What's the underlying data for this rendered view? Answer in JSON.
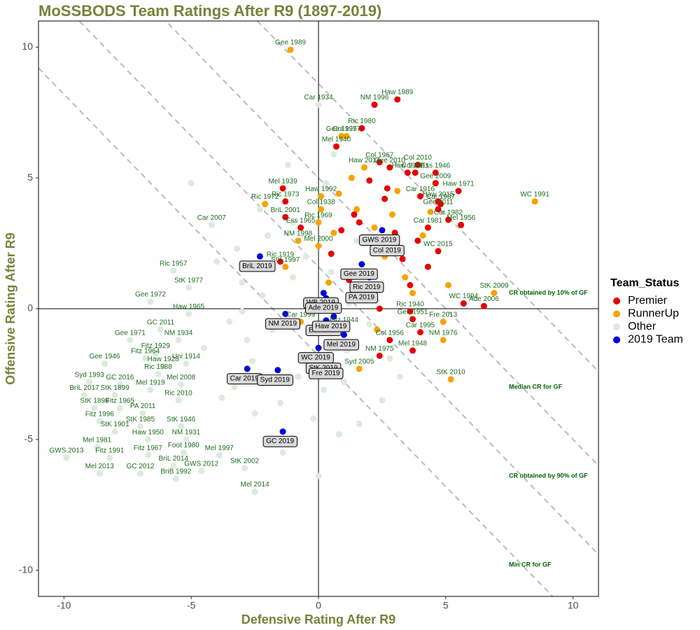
{
  "chart_data": {
    "type": "scatter",
    "title": "MoSSBODS Team Ratings After R9 (1897-2019)",
    "x_label": "Defensive Rating After R9",
    "y_label": "Offensive Rating After R9",
    "legend_title": "Team_Status",
    "xlim": [
      -11,
      11
    ],
    "ylim": [
      -11,
      11
    ],
    "xticks": [
      -10,
      -5,
      0,
      5,
      10
    ],
    "yticks": [
      -10,
      -5,
      0,
      5,
      10
    ],
    "zero_lines": true,
    "reference_lines": [
      {
        "value": 8.6,
        "label": "CR obtained by 10% of GF"
      },
      {
        "value": 5,
        "label": "Median CR for GF"
      },
      {
        "value": 1.6,
        "label": "CR obtained by 90% of GF"
      },
      {
        "value": -1.8,
        "label": "Min CR for GF"
      }
    ],
    "series": [
      {
        "name": "Premier",
        "color": "#e60000",
        "x": [
          3.1,
          2.2,
          1.7,
          0.7,
          2.4,
          2.8,
          3.5,
          3.9,
          3.8,
          4.6,
          4.6,
          5.5,
          4.8,
          5.1,
          5.6,
          4.7,
          4.3,
          4.7,
          4.7,
          4.0,
          -1.4,
          -1.3,
          -1.3,
          -0.7,
          -1.5,
          5.7,
          6.5,
          4.0,
          3.7,
          2.8,
          2.4,
          3.7,
          3.6,
          1.0,
          2.0,
          2.6,
          1.4,
          3.0,
          2.2,
          1.9,
          3.3,
          0.9,
          2.7,
          1.2,
          3.6,
          2.4,
          0.5,
          1.6,
          4.3,
          3.9
        ],
        "y": [
          8.0,
          7.8,
          6.9,
          6.2,
          5.6,
          5.4,
          5.2,
          5.5,
          5.2,
          5.2,
          4.8,
          4.5,
          4.0,
          3.4,
          3.2,
          2.2,
          3.1,
          3.8,
          4.1,
          4.3,
          4.6,
          4.1,
          3.5,
          3.1,
          1.8,
          0.2,
          0.1,
          -0.9,
          -1.6,
          -1.2,
          -1.8,
          -0.4,
          -0.1,
          -0.7,
          4.9,
          4.2,
          3.6,
          2.9,
          2.4,
          1.3,
          1.9,
          3.0,
          4.6,
          1.1,
          0.9,
          0.0,
          2.1,
          3.3,
          1.6,
          2.6
        ],
        "labels": [
          "Haw 1989",
          "NM 1996",
          "Ric 1980",
          "Mel 1940",
          "Col 1967",
          "Gee 2010",
          "Haw 1977",
          "Col 2010",
          "Col 2011",
          "Ess 1946",
          "Gee 2009",
          "Haw 1971",
          "Car 1987",
          "Car 1982",
          "Mel 1956",
          "WC 2015",
          "Car 1981",
          "Gee 2011",
          "Haw 2015",
          "Car 1916",
          "Mel 1939",
          "Ric 1973",
          "BriL 2001",
          "Ess 1965",
          "Ric 1919",
          "WC 1994",
          "Ade 2006",
          "Car 1995",
          "Mel 1948",
          "Col 1956",
          "NM 1975",
          "Gee 1951",
          "Ric 1940",
          "Fitz 1944",
          null,
          null,
          null,
          null,
          null,
          null,
          null,
          null,
          null,
          null,
          null,
          null,
          null,
          null,
          null,
          null
        ]
      },
      {
        "name": "RunnerUp",
        "color": "#f5a300",
        "x": [
          -1.1,
          0.9,
          1.1,
          8.5,
          6.9,
          5.2,
          4.9,
          4.9,
          0.1,
          0.1,
          -0.8,
          0.0,
          1.8,
          0.0,
          -2.1,
          -1.3,
          -0.7,
          1.6,
          0.8,
          1.5,
          2.2,
          3.1,
          2.6,
          1.9,
          3.4,
          0.4,
          4.1,
          2.9,
          1.3,
          3.7,
          0.6,
          2.3,
          5.1,
          4.4
        ],
        "y": [
          9.9,
          6.6,
          6.6,
          4.1,
          0.6,
          -2.7,
          -0.5,
          -1.2,
          4.3,
          3.8,
          2.6,
          3.3,
          5.4,
          2.4,
          4.0,
          1.6,
          -0.5,
          -2.3,
          4.4,
          3.8,
          3.1,
          4.5,
          2.0,
          0.8,
          1.2,
          1.0,
          2.8,
          3.6,
          5.0,
          0.6,
          2.9,
          -0.8,
          0.9,
          3.7
        ],
        "labels": [
          "Gee 1989",
          "Gee 1995",
          "Col 1977",
          "WC 1991",
          "StK 2009",
          "StK 2010",
          "Fre 2013",
          "NM 1976",
          "Haw 1992",
          "Col 1938",
          "NM 1998",
          "Ric 1969",
          "Haw 2014",
          "Mel 2000",
          "Ric 1972",
          "StK 1997",
          "Car 1999",
          "Syd 2005",
          null,
          null,
          null,
          null,
          null,
          null,
          null,
          null,
          null,
          null,
          null,
          null,
          null,
          null,
          null,
          null
        ]
      },
      {
        "name": "Other",
        "color": "#dcebdc",
        "x": [
          -4.2,
          -5.7,
          -5.1,
          -6.6,
          -5.1,
          -6.2,
          -7.4,
          -5.5,
          -6.4,
          -6.8,
          -6.1,
          -5.2,
          -8.4,
          -6.3,
          -9.0,
          -7.8,
          -6.6,
          -5.4,
          -9.2,
          -8.0,
          -8.8,
          -5.5,
          -7.8,
          -8.6,
          -6.9,
          -8.0,
          -7.0,
          -5.4,
          -6.7,
          -5.2,
          -8.7,
          -9.9,
          -8.2,
          -6.7,
          -5.3,
          -3.9,
          -8.6,
          -7.0,
          -5.7,
          -5.6,
          -4.6,
          -2.9,
          -2.5,
          0.0,
          -3.0,
          -2.2,
          -1.0,
          -0.5,
          0.5,
          1.2,
          2.0,
          -3.5,
          -4.5,
          -2.8,
          -1.8,
          -0.8,
          0.2,
          1.0,
          2.5,
          3.2,
          -3.8,
          -2.5,
          -1.5,
          -0.2,
          0.8,
          1.6,
          -2.0,
          -1.0,
          0.3,
          1.5,
          2.3,
          -4.0,
          -3.2,
          -0.4,
          1.1,
          -2.6,
          -1.7,
          -3.3,
          -5.0,
          -1.2,
          0.6,
          2.8,
          -2.3,
          -3.0,
          -1.4,
          0.0
        ],
        "y": [
          3.2,
          1.45,
          0.8,
          0.27,
          -0.2,
          -0.8,
          -1.2,
          -1.2,
          -1.7,
          -1.9,
          -2.2,
          -2.1,
          -2.1,
          -2.5,
          -2.8,
          -2.9,
          -3.1,
          -2.9,
          -3.3,
          -3.3,
          -3.8,
          -3.5,
          -3.8,
          -4.3,
          -4.0,
          -4.7,
          -4.5,
          -4.5,
          -5.0,
          -5.0,
          -5.3,
          -5.7,
          -5.7,
          -5.6,
          -5.5,
          -5.6,
          -6.3,
          -6.3,
          -6.0,
          -6.5,
          -6.2,
          -6.1,
          -7.0,
          7.8,
          1.0,
          0.5,
          1.2,
          2.0,
          1.4,
          0.2,
          -0.6,
          -0.5,
          -1.5,
          -1.2,
          -0.8,
          -2.6,
          -3.1,
          -2.8,
          -3.5,
          -2.6,
          -3.4,
          -4.0,
          -3.6,
          -4.2,
          -4.8,
          -4.4,
          2.8,
          3.3,
          4.8,
          2.6,
          0.3,
          1.8,
          2.3,
          -0.9,
          -1.6,
          -2.0,
          -5.0,
          -3.0,
          4.8,
          5.5,
          5.9,
          -1.9,
          3.8,
          -0.1,
          -5.5,
          -6.4
        ],
        "labels": [
          "Car 2007",
          "Ric 1957",
          "StK 1977",
          "Gee 1972",
          "Haw 1965",
          "GC 2011",
          "Gee 1971",
          "NM 1934",
          "Fitz 1929",
          "Fitz 1964",
          "Haw 1928",
          "Uni 1914",
          "Gee 1946",
          "Ric 1988",
          "Syd 1993",
          "GC 2016",
          "Mel 1919",
          "Mel 2008",
          "BriL 2017",
          "StK 1899",
          "StK 1898",
          "Ric 2010",
          "Fitz 1965",
          "Fitz 1996",
          "PA 2011",
          "StK 1901",
          "StK 1985",
          "StK 1946",
          "Haw 1950",
          "NM 1931",
          "Mel 1981",
          "GWS 2013",
          "Fitz 1991",
          "Fitz 1967",
          "Foot 1980",
          "Mel 1997",
          "Mel 2013",
          "GC 2012",
          "BriL 2014",
          "BriB 1992",
          "GWS 2012",
          "StK 2002",
          "Mel 2014",
          "Car 1934",
          null,
          null,
          null,
          null,
          null,
          null,
          null,
          null,
          null,
          null,
          null,
          null,
          null,
          null,
          null,
          null,
          null,
          null,
          null,
          null,
          null,
          null,
          null,
          null,
          null,
          null,
          null,
          null,
          null,
          null,
          null,
          null,
          null,
          null,
          null,
          null,
          null,
          null,
          null,
          null,
          null,
          null
        ]
      },
      {
        "name": "2019 Team",
        "color": "#0000dd",
        "x": [
          2.5,
          1.7,
          2.8,
          2.0,
          -2.3,
          0.2,
          1.8,
          0.3,
          0.3,
          -1.3,
          0.6,
          1.0,
          0.0,
          -2.8,
          -1.6,
          0.3,
          0.4,
          -1.4
        ],
        "y": [
          3.0,
          1.7,
          2.6,
          1.2,
          2.0,
          0.6,
          0.8,
          0.4,
          -0.45,
          -0.2,
          -0.3,
          -1.0,
          -1.5,
          -2.3,
          -2.35,
          -1.9,
          -2.1,
          -4.7
        ],
        "labels": [
          "GWS 2019",
          "Gee 2019",
          "Col 2019",
          "Ric 2019",
          "BriL 2019",
          "WB 2019",
          "PA 2019",
          "Ade 2019",
          "Ess 2019",
          "NM 2019",
          "Haw 2019",
          "Mel 2019",
          "WC 2019",
          "Car 2019",
          "Syd 2019",
          "StK 2019",
          "Fre 2019",
          "GC 2019"
        ],
        "boxed_labels": true
      }
    ]
  }
}
